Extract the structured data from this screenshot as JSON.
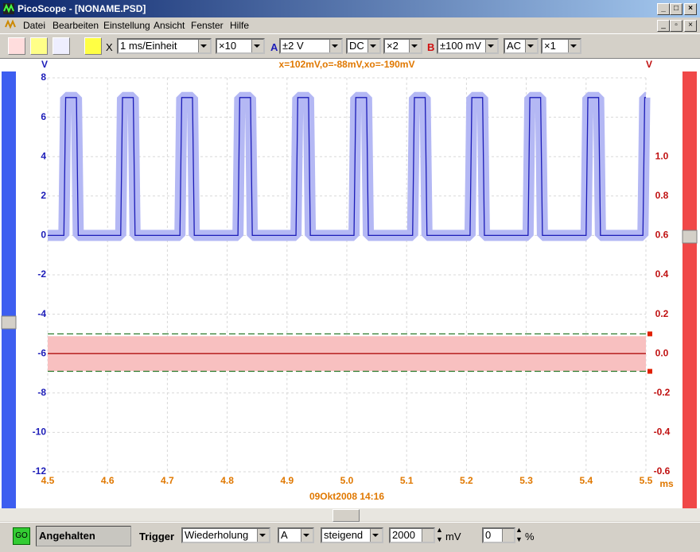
{
  "window": {
    "title": "PicoScope - [NONAME.PSD]"
  },
  "menu": [
    "Datei",
    "Bearbeiten",
    "Einstellung",
    "Ansicht",
    "Fenster",
    "Hilfe"
  ],
  "toolbar": {
    "x_label": "X",
    "timebase": "1 ms/Einheit",
    "x_mult": "×10",
    "ch_a_label": "A",
    "ch_a_range": "±2 V",
    "ch_a_coupling": "DC",
    "ch_a_mult": "×2",
    "ch_b_label": "B",
    "ch_b_range": "±100 mV",
    "ch_b_coupling": "AC",
    "ch_b_mult": "×1"
  },
  "chart_data": {
    "type": "line",
    "annotation": "x=102mV,o=-88mV,xo=-190mV",
    "ylabel": "V",
    "y2label": "V",
    "xunit": "ms",
    "timestamp": "09Okt2008  14:16",
    "grid": true,
    "xlim": [
      4.5,
      5.5
    ],
    "xticks": [
      4.5,
      4.6,
      4.7,
      4.8,
      4.9,
      {
        "value": 5,
        "label": "5.0"
      },
      5.1,
      5.2,
      5.3,
      5.4,
      5.5
    ],
    "ylim": [
      -12,
      8
    ],
    "yticks": [
      -12,
      -10,
      -8,
      -6,
      -4,
      -2,
      0,
      2,
      4,
      6,
      8
    ],
    "y2lim": [
      -0.6,
      1.4
    ],
    "y2ticks": [
      -0.6,
      -0.4,
      -0.2,
      {
        "value": 0,
        "label": "0.0"
      },
      0.2,
      0.4,
      0.6,
      0.8,
      {
        "value": 1,
        "label": "1.0"
      }
    ],
    "series": [
      {
        "color": "#1c1cb8",
        "envelope_color": "#b4b8f4",
        "x": [
          4.5,
          4.527,
          4.53,
          4.548,
          4.551,
          4.622,
          4.625,
          4.643,
          4.646,
          4.721,
          4.724,
          4.742,
          4.745,
          4.818,
          4.821,
          4.839,
          4.842,
          4.915,
          4.918,
          4.936,
          4.939,
          5.012,
          5.015,
          5.033,
          5.036,
          5.11,
          5.113,
          5.131,
          5.134,
          5.206,
          5.209,
          5.227,
          5.23,
          5.303,
          5.306,
          5.324,
          5.327,
          5.4,
          5.403,
          5.421,
          5.424,
          5.495,
          5.498,
          5.5
        ],
        "values": [
          0,
          0,
          7,
          7,
          0,
          0,
          7,
          7,
          0,
          0,
          7,
          7,
          0,
          0,
          7,
          7,
          0,
          0,
          7,
          7,
          0,
          0,
          7,
          7,
          0,
          0,
          7,
          7,
          0,
          0,
          7,
          7,
          0,
          0,
          7,
          7,
          0,
          0,
          7,
          7,
          0,
          0,
          7,
          7
        ]
      },
      {
        "color": "#b01010",
        "envelope_color": "#f8c0c0",
        "axis": "y2",
        "x": [
          4.5,
          5.5
        ],
        "values": [
          0,
          0
        ]
      }
    ],
    "trigger_levels": {
      "color": "#2a7a2a",
      "axis": "y2",
      "values": [
        0.1,
        -0.09
      ]
    }
  },
  "status": {
    "go": "GO",
    "state": "Angehalten",
    "trigger_label": "Trigger",
    "trigger_mode": "Wiederholung",
    "trigger_channel": "A",
    "trigger_edge": "steigend",
    "threshold": "2000",
    "threshold_unit": "mV",
    "delay": "0",
    "delay_unit": "%"
  }
}
